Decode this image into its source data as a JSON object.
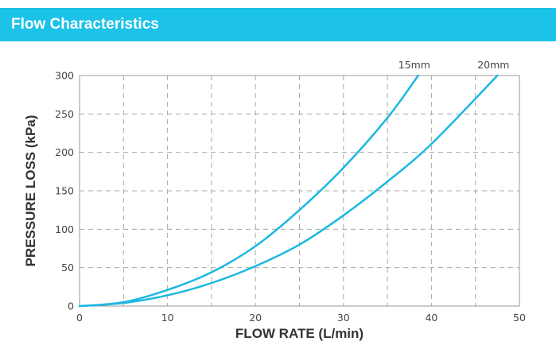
{
  "header": {
    "title": "Flow Characteristics"
  },
  "chart_data": {
    "type": "line",
    "xlabel": "FLOW RATE (L/min)",
    "ylabel": "PRESSURE LOSS (kPa)",
    "xlim": [
      0,
      50
    ],
    "ylim": [
      0,
      300
    ],
    "x_ticks": [
      0,
      10,
      20,
      30,
      40,
      50
    ],
    "y_ticks": [
      0,
      50,
      100,
      150,
      200,
      250,
      300
    ],
    "grid": "dashed",
    "series": [
      {
        "name": "15mm",
        "color": "#1cb8e0",
        "x": [
          0,
          5,
          10,
          15,
          20,
          25,
          30,
          35,
          38.5
        ],
        "y": [
          0,
          5,
          21,
          44,
          78,
          125,
          180,
          245,
          300
        ]
      },
      {
        "name": "20mm",
        "color": "#1cb8e0",
        "x": [
          0,
          5,
          10,
          15,
          20,
          25,
          30,
          35,
          40,
          47.5
        ],
        "y": [
          0,
          4,
          14,
          30,
          52,
          80,
          118,
          162,
          211,
          300
        ]
      }
    ]
  }
}
